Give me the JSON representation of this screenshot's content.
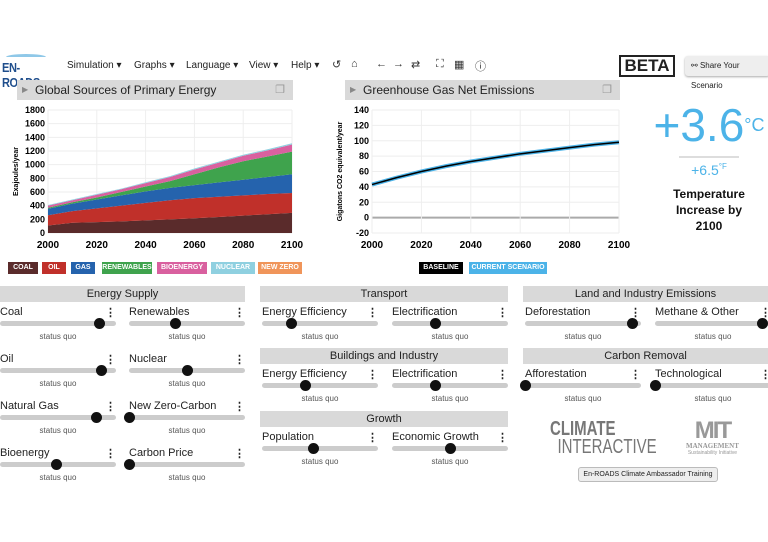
{
  "app": {
    "logo": "EN-ROADS",
    "beta": "BETA",
    "share": "Share Your Scenario"
  },
  "menu": [
    {
      "label": "Simulation"
    },
    {
      "label": "Graphs"
    },
    {
      "label": "Language"
    },
    {
      "label": "View"
    },
    {
      "label": "Help"
    }
  ],
  "toolbar": [
    {
      "icon": "undo-icon",
      "glyph": "↺"
    },
    {
      "icon": "home-icon",
      "glyph": "⌂"
    },
    {
      "icon": "back-icon",
      "glyph": "←"
    },
    {
      "icon": "forward-icon",
      "glyph": "→"
    },
    {
      "icon": "repeat-icon",
      "glyph": "⇄"
    },
    {
      "icon": "fullscreen-icon",
      "glyph": "⛶"
    },
    {
      "icon": "table-icon",
      "glyph": "▦"
    },
    {
      "icon": "info-icon",
      "glyph": "ⓘ"
    }
  ],
  "chart_data": [
    {
      "type": "area",
      "stacked": true,
      "title": "Global Sources of Primary Energy",
      "ylabel": "Exajoules/year",
      "ylim": [
        0,
        1800
      ],
      "yticks": [
        0,
        200,
        400,
        600,
        800,
        1000,
        1200,
        1400,
        1600,
        1800
      ],
      "xlim": [
        2000,
        2100
      ],
      "xticks": [
        2000,
        2020,
        2040,
        2060,
        2080,
        2100
      ],
      "grid": true,
      "x": [
        2000,
        2010,
        2020,
        2030,
        2040,
        2050,
        2060,
        2070,
        2080,
        2090,
        2100
      ],
      "series": [
        {
          "name": "COAL",
          "color": "#5a2b2b",
          "values": [
            110,
            150,
            160,
            170,
            185,
            200,
            215,
            235,
            255,
            275,
            295
          ]
        },
        {
          "name": "OIL",
          "color": "#c0302a",
          "values": [
            150,
            170,
            200,
            230,
            255,
            280,
            295,
            295,
            295,
            295,
            290
          ]
        },
        {
          "name": "GAS",
          "color": "#2563ad",
          "values": [
            95,
            110,
            130,
            150,
            170,
            180,
            190,
            210,
            230,
            250,
            275
          ]
        },
        {
          "name": "RENEWABLES",
          "color": "#3fa34d",
          "values": [
            15,
            20,
            30,
            50,
            70,
            100,
            160,
            220,
            270,
            300,
            330
          ]
        },
        {
          "name": "BIOENERGY",
          "color": "#d9609f",
          "values": [
            30,
            30,
            40,
            40,
            50,
            60,
            70,
            70,
            80,
            90,
            105
          ]
        },
        {
          "name": "NUCLEAR",
          "color": "#8fd0e0",
          "values": [
            10,
            10,
            10,
            10,
            12,
            12,
            14,
            14,
            15,
            15,
            18
          ]
        },
        {
          "name": "NEW ZERO",
          "color": "#f0955a",
          "values": [
            0,
            0,
            0,
            0,
            0,
            0,
            0,
            0,
            0,
            0,
            0
          ]
        }
      ]
    },
    {
      "type": "line",
      "title": "Greenhouse Gas Net Emissions",
      "ylabel": "Gigatons CO2 equivalent/year",
      "ylim": [
        -20,
        140
      ],
      "yticks": [
        -20,
        0,
        20,
        40,
        60,
        80,
        100,
        120,
        140
      ],
      "xlim": [
        2000,
        2100
      ],
      "xticks": [
        2000,
        2020,
        2040,
        2060,
        2080,
        2100
      ],
      "grid": true,
      "x": [
        2000,
        2010,
        2020,
        2030,
        2040,
        2050,
        2060,
        2070,
        2080,
        2090,
        2100
      ],
      "series": [
        {
          "name": "CURRENT SCENARIO",
          "color": "#4cb3e8",
          "values": [
            43,
            52,
            60,
            67,
            73,
            78,
            83,
            87,
            91,
            95,
            98
          ]
        },
        {
          "name": "BASELINE",
          "color": "#000000",
          "values": [
            43,
            52,
            60,
            67,
            73,
            78,
            83,
            87,
            91,
            95,
            98
          ]
        }
      ]
    }
  ],
  "temperature": {
    "celsius": "+3.6",
    "c_unit": "°C",
    "fahrenheit": "+6.5",
    "f_unit": "°F",
    "caption": "Temperature Increase by 2100"
  },
  "sections": [
    {
      "title": "Energy Supply",
      "sliders": [
        {
          "label": "Coal",
          "value": 0.85,
          "status": "status quo"
        },
        {
          "label": "Renewables",
          "value": 0.4,
          "status": "status quo"
        },
        {
          "label": "Oil",
          "value": 0.87,
          "status": "status quo"
        },
        {
          "label": "Nuclear",
          "value": 0.5,
          "status": "status quo"
        },
        {
          "label": "Natural Gas",
          "value": 0.83,
          "status": "status quo"
        },
        {
          "label": "New Zero-Carbon",
          "value": 0,
          "status": "status quo"
        },
        {
          "label": "Bioenergy",
          "value": 0.48,
          "status": "status quo"
        },
        {
          "label": "Carbon Price",
          "value": 0,
          "status": "status quo"
        }
      ]
    },
    {
      "title": "Transport",
      "sliders": [
        {
          "label": "Energy Efficiency",
          "value": 0.25,
          "status": "status quo"
        },
        {
          "label": "Electrification",
          "value": 0.37,
          "status": "status quo"
        }
      ]
    },
    {
      "title": "Buildings and Industry",
      "sliders": [
        {
          "label": "Energy Efficiency",
          "value": 0.37,
          "status": "status quo"
        },
        {
          "label": "Electrification",
          "value": 0.37,
          "status": "status quo"
        }
      ]
    },
    {
      "title": "Growth",
      "sliders": [
        {
          "label": "Population",
          "value": 0.44,
          "status": "status quo"
        },
        {
          "label": "Economic Growth",
          "value": 0.5,
          "status": "status quo"
        }
      ]
    },
    {
      "title": "Land and Industry Emissions",
      "sliders": [
        {
          "label": "Deforestation",
          "value": 0.92,
          "status": "status quo"
        },
        {
          "label": "Methane & Other",
          "value": 0.92,
          "status": "status quo"
        }
      ]
    },
    {
      "title": "Carbon Removal",
      "sliders": [
        {
          "label": "Afforestation",
          "value": 0,
          "status": "status quo"
        },
        {
          "label": "Technological",
          "value": 0,
          "status": "status quo"
        }
      ]
    }
  ],
  "logos": {
    "ci_top": "CLIMATE",
    "ci_bottom": "INTERACTIVE",
    "mit": "MIT",
    "mit_sub": "MANAGEMENT",
    "mit_sub2": "Sustainability Initiative"
  },
  "training_button": "En-ROADS Climate Ambassador Training"
}
